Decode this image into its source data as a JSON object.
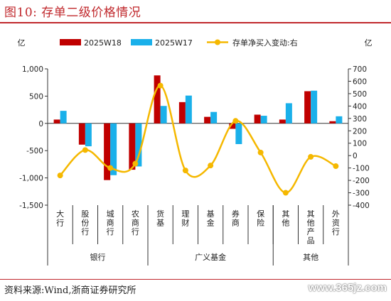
{
  "figure": {
    "title": "图10:  存单二级价格情况",
    "source": "资料来源:Wind,浙商证券研究所",
    "watermark": "www.365jz.com"
  },
  "chart_data": {
    "type": "bar",
    "left_unit": "亿",
    "right_unit": "亿",
    "categories": [
      "大行",
      "股份行",
      "城商行",
      "农商行",
      "货基",
      "理财",
      "基金",
      "券商",
      "保险",
      "其他",
      "其他产品",
      "外资行"
    ],
    "groups": [
      {
        "label": "银行",
        "members": [
          "大行",
          "股份行",
          "城商行",
          "农商行"
        ]
      },
      {
        "label": "广义基金",
        "members": [
          "货基",
          "理财",
          "基金",
          "券商",
          "保险"
        ]
      },
      {
        "label": "其他",
        "members": [
          "其他",
          "其他产品",
          "外资行"
        ]
      }
    ],
    "series": [
      {
        "name": "2025W18",
        "type": "bar",
        "axis": "left",
        "color": "#c00000",
        "values": [
          70,
          -390,
          -1040,
          -850,
          880,
          390,
          120,
          -100,
          160,
          70,
          590,
          40
        ]
      },
      {
        "name": "2025W17",
        "type": "bar",
        "axis": "left",
        "color": "#1ab0ea",
        "values": [
          230,
          -420,
          -950,
          -790,
          320,
          510,
          210,
          -380,
          140,
          370,
          600,
          130
        ]
      },
      {
        "name": "存单净买入变动:右",
        "type": "line",
        "axis": "right",
        "color": "#f5b800",
        "values": [
          -160,
          45,
          -100,
          -65,
          565,
          -120,
          -80,
          280,
          25,
          -300,
          -10,
          -85
        ]
      }
    ],
    "ylim_left": [
      -1500,
      1000
    ],
    "yticks_left": [
      -1500,
      -1000,
      -500,
      0,
      500,
      1000
    ],
    "ylim_right": [
      -400,
      700
    ],
    "yticks_right": [
      -400,
      -300,
      -200,
      -100,
      0,
      100,
      200,
      300,
      400,
      500,
      600,
      700
    ],
    "legend_position": "top",
    "grid": false
  }
}
